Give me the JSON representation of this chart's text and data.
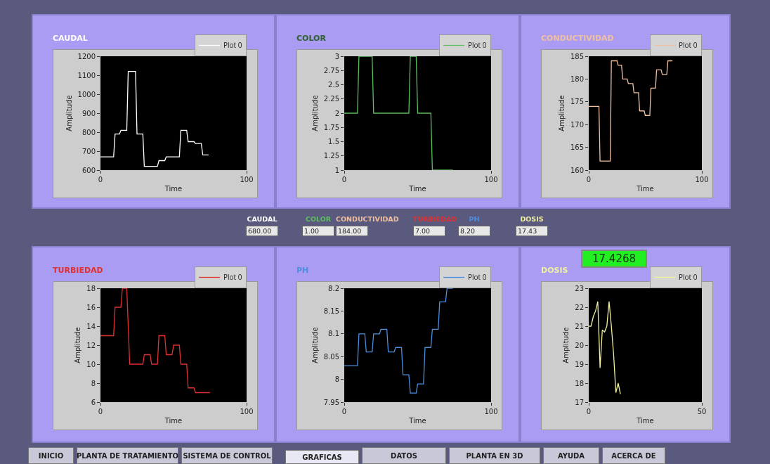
{
  "chart_data": [
    {
      "type": "line",
      "title": "CAUDAL",
      "xlabel": "Time",
      "ylabel": "Amplitude",
      "legend": "top right",
      "xlim": [
        0,
        100
      ],
      "xticks": [
        0,
        100
      ],
      "ylim": [
        600,
        1200
      ],
      "yticks": [
        600,
        700,
        800,
        900,
        1000,
        1100,
        1200
      ],
      "x": [
        0,
        9,
        10,
        13,
        14,
        18,
        19,
        24,
        25,
        29,
        30,
        39,
        40,
        44,
        45,
        54,
        55,
        59,
        60,
        64,
        65,
        69,
        70,
        74
      ],
      "series": [
        {
          "name": "Plot 0",
          "color": "#ffffff",
          "values": [
            670,
            670,
            790,
            790,
            810,
            810,
            1120,
            1120,
            790,
            790,
            620,
            620,
            650,
            650,
            670,
            670,
            810,
            810,
            750,
            750,
            740,
            740,
            680,
            680
          ]
        }
      ]
    },
    {
      "type": "line",
      "title": "COLOR",
      "xlabel": "Time",
      "ylabel": "Amplitude",
      "legend": "top right",
      "xlim": [
        0,
        100
      ],
      "xticks": [
        0,
        100
      ],
      "ylim": [
        1,
        3
      ],
      "yticks": [
        1,
        1.25,
        1.5,
        1.75,
        2,
        2.25,
        2.5,
        2.75,
        3
      ],
      "x": [
        0,
        9,
        10,
        19,
        20,
        44,
        45,
        49,
        50,
        59,
        60,
        74
      ],
      "series": [
        {
          "name": "Plot 0",
          "color": "#5cc05c",
          "values": [
            2,
            2,
            3,
            3,
            2,
            2,
            3,
            3,
            2,
            2,
            1,
            1
          ]
        }
      ]
    },
    {
      "type": "line",
      "title": "CONDUCTIVIDAD",
      "xlabel": "Time",
      "ylabel": "Amplitude",
      "legend": "top right",
      "xlim": [
        0,
        100
      ],
      "xticks": [
        0,
        100
      ],
      "ylim": [
        160,
        185
      ],
      "yticks": [
        160,
        165,
        170,
        175,
        180,
        185
      ],
      "x": [
        0,
        9,
        10,
        19,
        20,
        25,
        26,
        29,
        30,
        34,
        35,
        39,
        40,
        44,
        45,
        49,
        50,
        54,
        55,
        59,
        60,
        64,
        65,
        69,
        70,
        74
      ],
      "series": [
        {
          "name": "Plot 0",
          "color": "#f0c0a0",
          "values": [
            174,
            174,
            162,
            162,
            184,
            184,
            183,
            183,
            180,
            180,
            179,
            179,
            177,
            177,
            173,
            173,
            172,
            172,
            178,
            178,
            182,
            182,
            181,
            181,
            184,
            184
          ]
        }
      ]
    },
    {
      "type": "line",
      "title": "TURBIEDAD",
      "xlabel": "Time",
      "ylabel": "Amplitude",
      "legend": "top right",
      "xlim": [
        0,
        100
      ],
      "xticks": [
        0,
        100
      ],
      "ylim": [
        6,
        18
      ],
      "yticks": [
        6,
        8,
        10,
        12,
        14,
        16,
        18
      ],
      "x": [
        0,
        9,
        10,
        14,
        15,
        18,
        20,
        29,
        30,
        34,
        35,
        39,
        40,
        44,
        45,
        49,
        50,
        54,
        55,
        59,
        60,
        64,
        65,
        75
      ],
      "series": [
        {
          "name": "Plot 0",
          "color": "#e03030",
          "values": [
            13,
            13,
            16,
            16,
            18,
            18,
            10,
            10,
            11,
            11,
            10,
            10,
            13,
            13,
            11,
            11,
            12,
            12,
            10,
            10,
            7.5,
            7.5,
            7,
            7
          ]
        }
      ]
    },
    {
      "type": "line",
      "title": "PH",
      "xlabel": "Time",
      "ylabel": "Amplitude",
      "legend": "top right",
      "xlim": [
        0,
        100
      ],
      "xticks": [
        0,
        100
      ],
      "ylim": [
        7.95,
        8.2
      ],
      "yticks": [
        7.95,
        8,
        8.05,
        8.1,
        8.15,
        8.2
      ],
      "x": [
        0,
        9,
        10,
        14,
        15,
        19,
        20,
        24,
        25,
        29,
        30,
        34,
        35,
        39,
        40,
        44,
        45,
        49,
        50,
        54,
        55,
        59,
        60,
        64,
        65,
        69,
        70,
        74
      ],
      "series": [
        {
          "name": "Plot 0",
          "color": "#4a8fe0",
          "values": [
            8.03,
            8.03,
            8.1,
            8.1,
            8.06,
            8.06,
            8.1,
            8.1,
            8.11,
            8.11,
            8.06,
            8.06,
            8.07,
            8.07,
            8.01,
            8.01,
            7.97,
            7.97,
            7.99,
            7.99,
            8.07,
            8.07,
            8.11,
            8.11,
            8.17,
            8.17,
            8.2,
            8.2
          ]
        }
      ]
    },
    {
      "type": "line",
      "title": "DOSIS",
      "xlabel": "Time",
      "ylabel": "Amplitude",
      "legend": "top right",
      "xlim": [
        0,
        50
      ],
      "xticks": [
        0,
        50
      ],
      "ylim": [
        17,
        23
      ],
      "yticks": [
        17,
        18,
        19,
        20,
        21,
        22,
        23
      ],
      "annotations": [
        "17.4268"
      ],
      "x": [
        0,
        1,
        2,
        3,
        4,
        5,
        6,
        7,
        8,
        9,
        10,
        11,
        12,
        13,
        14
      ],
      "series": [
        {
          "name": "Plot 0",
          "color": "#f0f0a0",
          "values": [
            21,
            21,
            21.5,
            21.8,
            22.3,
            18.8,
            20.8,
            20.7,
            21,
            22.3,
            21,
            19.5,
            17.5,
            18,
            17.43
          ]
        }
      ]
    },
    {
      "type": "other",
      "annotations": [
        "CAUDAL",
        "680.00",
        "COLOR",
        "1.00",
        "CONDUCTIVIDAD",
        "184.00",
        "TURBIEDAD",
        "7.00",
        "PH",
        "8.20",
        "DOSIS",
        "17.43"
      ]
    },
    {
      "type": "other",
      "annotations": [
        "INICIO",
        "PLANTA DE TRATAMIENTO",
        "SISTEMA DE CONTROL",
        "GRAFICAS",
        "DATOS",
        "PLANTA EN 3D",
        "AYUDA",
        "ACERCA DE"
      ]
    }
  ]
}
